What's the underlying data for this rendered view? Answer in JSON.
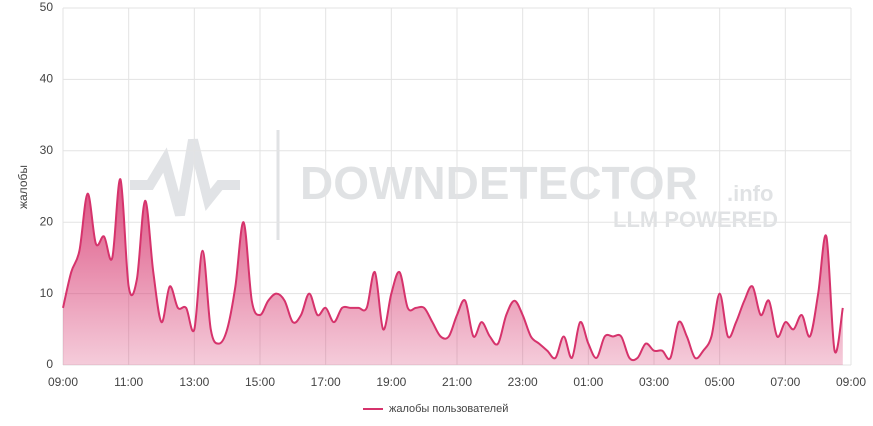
{
  "chart_data": {
    "type": "area",
    "y_label": "жалобы",
    "watermark": {
      "brand": "DOWNDETECTOR",
      "suffix": ".info",
      "tagline": "LLM POWERED"
    },
    "categories": [
      "09:00",
      null,
      null,
      null,
      null,
      null,
      null,
      null,
      "11:00",
      null,
      null,
      null,
      null,
      null,
      null,
      null,
      "13:00",
      null,
      null,
      null,
      null,
      null,
      null,
      null,
      "15:00",
      null,
      null,
      null,
      null,
      null,
      null,
      null,
      "17:00",
      null,
      null,
      null,
      null,
      null,
      null,
      null,
      "19:00",
      null,
      null,
      null,
      null,
      null,
      null,
      null,
      "21:00",
      null,
      null,
      null,
      null,
      null,
      null,
      null,
      "23:00",
      null,
      null,
      null,
      null,
      null,
      null,
      null,
      "01:00",
      null,
      null,
      null,
      null,
      null,
      null,
      null,
      "03:00",
      null,
      null,
      null,
      null,
      null,
      null,
      null,
      "05:00",
      null,
      null,
      null,
      null,
      null,
      null,
      null,
      "07:00",
      null,
      null,
      null,
      null,
      null,
      null,
      null,
      "09:00"
    ],
    "series": [
      {
        "name": "жалобы пользователей",
        "color": "#d6336c",
        "values": [
          8,
          13,
          16,
          24,
          17,
          18,
          15,
          26,
          11,
          12,
          23,
          13,
          6,
          11,
          8,
          8,
          5,
          16,
          5,
          3,
          5,
          11,
          20,
          9,
          7,
          9,
          10,
          9,
          6,
          7,
          10,
          7,
          8,
          6,
          8,
          8,
          8,
          8,
          13,
          5,
          10,
          13,
          8,
          8,
          8,
          6,
          4,
          4,
          7,
          9,
          4,
          6,
          4,
          3,
          7,
          9,
          7,
          4,
          3,
          2,
          1,
          4,
          1,
          6,
          3,
          1,
          4,
          4,
          4,
          1,
          1,
          3,
          2,
          2,
          1,
          6,
          4,
          1,
          2,
          4,
          10,
          4,
          6,
          9,
          11,
          7,
          9,
          4,
          6,
          5,
          7,
          4,
          10,
          18,
          2,
          8,
          null
        ]
      }
    ],
    "ylim": [
      0,
      50
    ],
    "yticks": [
      0,
      10,
      20,
      30,
      40,
      50
    ],
    "grid": true,
    "legend": "bottom"
  }
}
